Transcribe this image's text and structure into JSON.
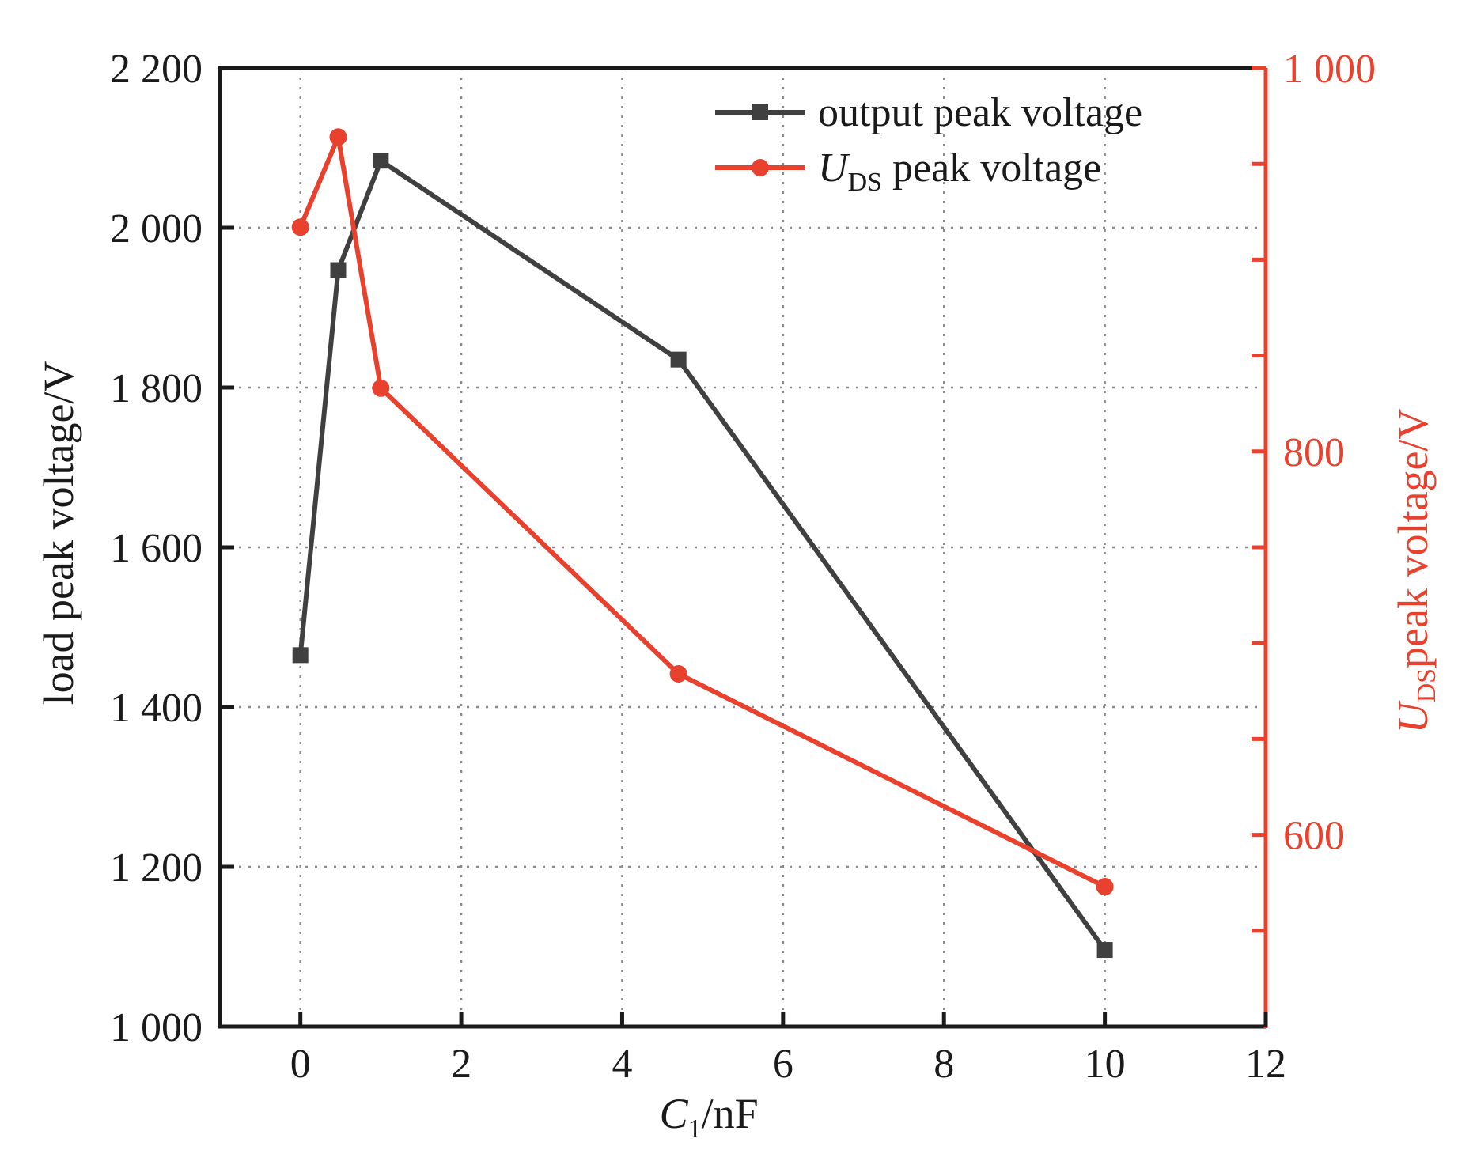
{
  "chart_data": {
    "type": "line",
    "x": [
      0,
      0.47,
      1,
      4.7,
      10
    ],
    "xlabel": {
      "main": "C",
      "sub": "1",
      "suffix": "/nF"
    },
    "xlim": [
      -1,
      12
    ],
    "xticks": [
      0,
      2,
      4,
      6,
      8,
      10,
      12
    ],
    "ylabel_left": "load peak voltage/V",
    "ylim_left": [
      1000,
      2200
    ],
    "yticks_left": [
      1000,
      1200,
      1400,
      1600,
      1800,
      2000,
      2200
    ],
    "yticks_left_labels": [
      "1 000",
      "1 200",
      "1 400",
      "1 600",
      "1 800",
      "2 000",
      "2 200"
    ],
    "ylabel_right": {
      "main": "U",
      "sub": "DS",
      "suffix": "peak voltage/V"
    },
    "ylim_right": [
      500,
      1000
    ],
    "yticks_right_major": [
      600,
      800,
      1000
    ],
    "yticks_right_major_labels": [
      "600",
      "800",
      "1 000"
    ],
    "yticks_right_minor": [
      550,
      650,
      700,
      750,
      850,
      900,
      950
    ],
    "grid": true,
    "legend_position": "top-right",
    "series": [
      {
        "name": "output peak voltage",
        "axis": "left",
        "marker": "square",
        "color": "#404040",
        "values": [
          1465,
          1947,
          2084,
          1835,
          1096
        ]
      },
      {
        "name": {
          "main": "U",
          "sub": "DS",
          "suffix": "peak voltage"
        },
        "axis": "right",
        "marker": "circle",
        "color": "#e8412e",
        "values": [
          917,
          964,
          833,
          684,
          573
        ]
      }
    ]
  }
}
